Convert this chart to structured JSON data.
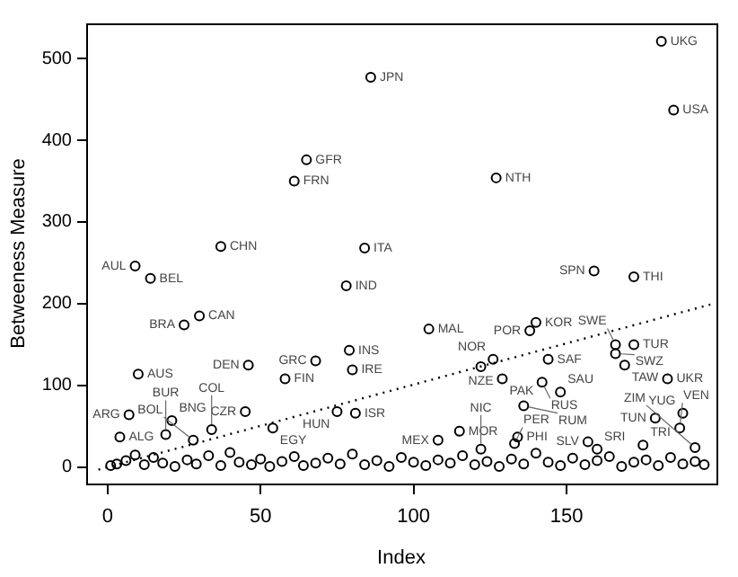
{
  "chart_data": {
    "type": "scatter",
    "xlabel": "Index",
    "ylabel": "Betweeness Measure",
    "xlim": [
      -7,
      199
    ],
    "ylim": [
      -20,
      543
    ],
    "xticks": [
      0,
      50,
      100,
      150
    ],
    "yticks": [
      0,
      100,
      200,
      300,
      400,
      500
    ],
    "grid": false,
    "legend": false,
    "marker": "circle",
    "series": [
      {
        "color": "#000000",
        "x": [
          181,
          185,
          86,
          127,
          84,
          159,
          172,
          65,
          61,
          37,
          9,
          14,
          78,
          30,
          25,
          79,
          68,
          80,
          46,
          58,
          10,
          7,
          21,
          45,
          4,
          19,
          34,
          54,
          28,
          75,
          81,
          105,
          140,
          138,
          126,
          122,
          129,
          142,
          148,
          144,
          166,
          166,
          172,
          169,
          183,
          179,
          188,
          187,
          175,
          192,
          115,
          108,
          134,
          133,
          157,
          160,
          122,
          136,
          1,
          3,
          6,
          9,
          12,
          15,
          18,
          22,
          26,
          29,
          33,
          37,
          40,
          43,
          47,
          50,
          53,
          57,
          61,
          64,
          68,
          72,
          76,
          80,
          84,
          88,
          92,
          96,
          100,
          104,
          108,
          112,
          116,
          120,
          124,
          128,
          132,
          136,
          140,
          144,
          148,
          152,
          156,
          160,
          164,
          168,
          172,
          176,
          180,
          184,
          188,
          192,
          195
        ],
        "values": [
          521,
          437,
          477,
          354,
          268,
          240,
          233,
          376,
          350,
          270,
          246,
          231,
          222,
          185,
          174,
          143,
          130,
          119,
          125,
          108,
          114,
          64,
          57,
          68,
          37,
          40,
          46,
          48,
          33,
          68,
          66,
          169,
          177,
          167,
          132,
          123,
          108,
          104,
          92,
          132,
          150,
          139,
          150,
          125,
          108,
          60,
          66,
          48,
          27,
          24,
          44,
          33,
          37,
          29,
          31,
          22,
          22,
          75,
          2,
          4,
          8,
          15,
          3,
          12,
          5,
          1,
          9,
          4,
          14,
          2,
          18,
          6,
          3,
          10,
          1,
          7,
          13,
          2,
          5,
          11,
          4,
          16,
          3,
          8,
          1,
          12,
          6,
          2,
          9,
          5,
          14,
          3,
          7,
          1,
          10,
          4,
          17,
          6,
          2,
          11,
          3,
          8,
          13,
          1,
          6,
          9,
          2,
          12,
          4,
          7,
          3
        ]
      },
      {
        "type": "line",
        "color": "#000000",
        "line_style": "dotted",
        "marker": "none",
        "x": [
          -3,
          197
        ],
        "values": [
          -3,
          199
        ]
      }
    ],
    "annotations": [
      {
        "text": "UKG",
        "x": 181,
        "y": 521
      },
      {
        "text": "USA",
        "x": 185,
        "y": 437
      },
      {
        "text": "JPN",
        "x": 86,
        "y": 477
      },
      {
        "text": "NTH",
        "x": 127,
        "y": 354
      },
      {
        "text": "ITA",
        "x": 84,
        "y": 268
      },
      {
        "text": "SPN",
        "x": 159,
        "y": 240
      },
      {
        "text": "THI",
        "x": 172,
        "y": 233
      },
      {
        "text": "GFR",
        "x": 65,
        "y": 376
      },
      {
        "text": "FRN",
        "x": 61,
        "y": 350
      },
      {
        "text": "CHN",
        "x": 37,
        "y": 270
      },
      {
        "text": "AUL",
        "x": 9,
        "y": 246
      },
      {
        "text": "BEL",
        "x": 14,
        "y": 231
      },
      {
        "text": "IND",
        "x": 78,
        "y": 222
      },
      {
        "text": "CAN",
        "x": 30,
        "y": 185
      },
      {
        "text": "BRA",
        "x": 25,
        "y": 174
      },
      {
        "text": "INS",
        "x": 79,
        "y": 143
      },
      {
        "text": "GRC",
        "x": 68,
        "y": 130
      },
      {
        "text": "IRE",
        "x": 80,
        "y": 119
      },
      {
        "text": "DEN",
        "x": 46,
        "y": 125
      },
      {
        "text": "FIN",
        "x": 58,
        "y": 108
      },
      {
        "text": "AUS",
        "x": 10,
        "y": 114
      },
      {
        "text": "ARG",
        "x": 7,
        "y": 64
      },
      {
        "text": "BNG",
        "x": 21,
        "y": 57
      },
      {
        "text": "CZR",
        "x": 45,
        "y": 68
      },
      {
        "text": "ALG",
        "x": 4,
        "y": 37
      },
      {
        "text": "BUR",
        "x": 19,
        "y": 40
      },
      {
        "text": "COL",
        "x": 34,
        "y": 46
      },
      {
        "text": "EGY",
        "x": 54,
        "y": 48
      },
      {
        "text": "BOL",
        "x": 28,
        "y": 33
      },
      {
        "text": "HUN",
        "x": 75,
        "y": 68
      },
      {
        "text": "ISR",
        "x": 81,
        "y": 66
      },
      {
        "text": "MAL",
        "x": 105,
        "y": 169
      },
      {
        "text": "KOR",
        "x": 140,
        "y": 177
      },
      {
        "text": "POR",
        "x": 138,
        "y": 167
      },
      {
        "text": "NOR",
        "x": 126,
        "y": 132
      },
      {
        "text": "NZE",
        "x": 122,
        "y": 123
      },
      {
        "text": "PAK",
        "x": 129,
        "y": 108
      },
      {
        "text": "RUS",
        "x": 142,
        "y": 104
      },
      {
        "text": "SAU",
        "x": 148,
        "y": 92
      },
      {
        "text": "SAF",
        "x": 144,
        "y": 132
      },
      {
        "text": "SWE",
        "x": 166,
        "y": 150
      },
      {
        "text": "SWZ",
        "x": 166,
        "y": 139
      },
      {
        "text": "TUR",
        "x": 172,
        "y": 150
      },
      {
        "text": "TAW",
        "x": 169,
        "y": 125
      },
      {
        "text": "UKR",
        "x": 183,
        "y": 108
      },
      {
        "text": "TUN",
        "x": 179,
        "y": 60
      },
      {
        "text": "YUG",
        "x": 188,
        "y": 66
      },
      {
        "text": "VEN",
        "x": 187,
        "y": 48
      },
      {
        "text": "TRI",
        "x": 175,
        "y": 27
      },
      {
        "text": "ZIM",
        "x": 192,
        "y": 24
      },
      {
        "text": "MOR",
        "x": 115,
        "y": 44
      },
      {
        "text": "MEX",
        "x": 108,
        "y": 33
      },
      {
        "text": "PHI",
        "x": 134,
        "y": 37
      },
      {
        "text": "PER",
        "x": 133,
        "y": 29
      },
      {
        "text": "SLV",
        "x": 157,
        "y": 31
      },
      {
        "text": "SRI",
        "x": 160,
        "y": 22
      },
      {
        "text": "NIC",
        "x": 122,
        "y": 22
      },
      {
        "text": "RUM",
        "x": 136,
        "y": 75
      }
    ]
  }
}
